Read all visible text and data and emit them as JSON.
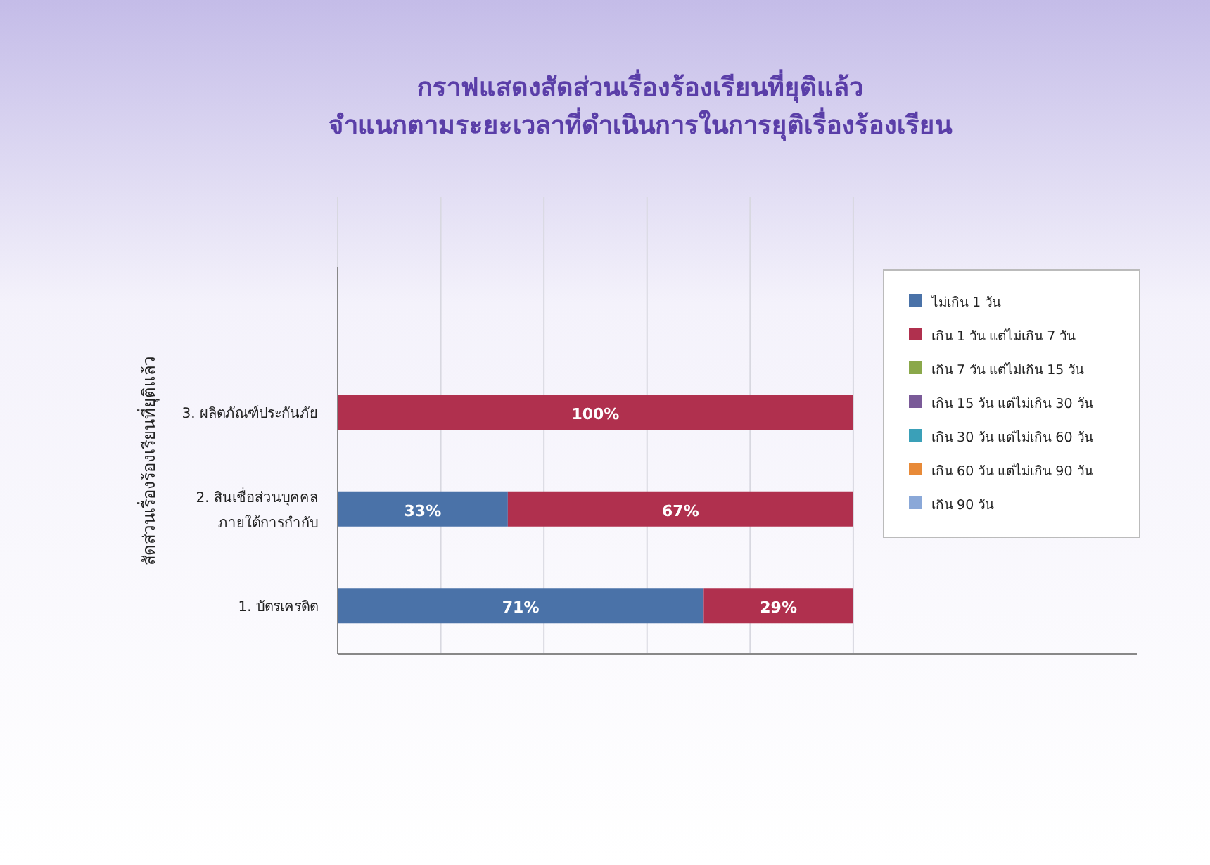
{
  "chart_data": {
    "type": "bar",
    "orientation": "horizontal",
    "stacked": true,
    "title": "กราฟแสดงสัดส่วนเรื่องร้องเรียนที่ยุติแล้ว",
    "subtitle": "จำแนกตามระยะเวลาที่ดำเนินการในการยุติเรื่องร้องเรียน",
    "ylabel": "สัดส่วนเรื่องร้องเรียนที่ยุติแล้ว",
    "categories": [
      null,
      "3. ผลิตภัณฑ์ประกันภัย",
      "2. สินเชื่อส่วนบุคคล ภายใต้การกำกับ",
      "1. บัตรเครดิต"
    ],
    "series": [
      {
        "name": "ไม่เกิน 1 วัน",
        "color": "#4a72a8",
        "values": [
          null,
          null,
          33,
          71
        ],
        "value_labels": [
          null,
          null,
          "33%",
          "71%"
        ]
      },
      {
        "name": "เกิน 1 วัน แต่ไม่เกิน 7 วัน",
        "color": "#b0304e",
        "values": [
          null,
          100,
          67,
          29
        ],
        "value_labels": [
          null,
          "100%",
          "67%",
          "29%"
        ]
      },
      {
        "name": "เกิน 7 วัน แต่ไม่เกิน 15 วัน",
        "color": "#8aa84a",
        "values": [
          null,
          null,
          null,
          null
        ]
      },
      {
        "name": "เกิน 15 วัน แต่ไม่เกิน 30 วัน",
        "color": "#7a5a98",
        "values": [
          null,
          null,
          null,
          null
        ]
      },
      {
        "name": "เกิน 30 วัน แต่ไม่เกิน 60 วัน",
        "color": "#3aa0b8",
        "values": [
          null,
          null,
          null,
          null
        ]
      },
      {
        "name": "เกิน 60 วัน แต่ไม่เกิน 90 วัน",
        "color": "#e88a38",
        "values": [
          null,
          null,
          null,
          null
        ]
      },
      {
        "name": "เกิน 90 วัน",
        "color": "#8aa8d8",
        "values": [
          null,
          null,
          null,
          null
        ]
      }
    ],
    "xlim": [
      0,
      155
    ],
    "xticks": [
      {
        "value": 0,
        "label": null
      },
      {
        "value": 20,
        "label": null
      },
      {
        "value": 40,
        "label": null
      },
      {
        "value": 60,
        "label": null
      },
      {
        "value": 80,
        "label": null
      },
      {
        "value": 100,
        "label": null
      }
    ],
    "tick_labels": "y",
    "grid": "x",
    "legend": "top right"
  }
}
